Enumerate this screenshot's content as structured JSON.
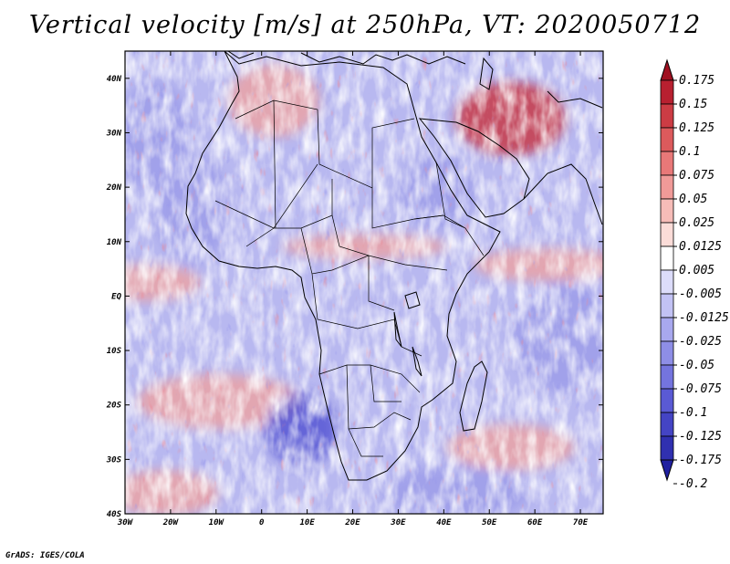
{
  "title": "Vertical velocity [m/s] at 250hPa, VT: 2020050712",
  "footer": "GrADS: IGES/COLA",
  "map": {
    "lon_ticks": [
      "30W",
      "20W",
      "10W",
      "0",
      "10E",
      "20E",
      "30E",
      "40E",
      "50E",
      "60E",
      "70E"
    ],
    "lat_ticks": [
      "40N",
      "30N",
      "20N",
      "10N",
      "EQ",
      "10S",
      "20S",
      "30S",
      "40S"
    ],
    "lon_range": [
      -30,
      75
    ],
    "lat_range": [
      -40,
      45
    ]
  },
  "colorbar": {
    "labels": [
      "0.175",
      "0.15",
      "0.125",
      "0.1",
      "0.075",
      "0.05",
      "0.025",
      "0.0125",
      "0.005",
      "-0.005",
      "-0.0125",
      "-0.025",
      "-0.05",
      "-0.075",
      "-0.1",
      "-0.125",
      "-0.175",
      "-0.2"
    ],
    "colors": [
      "#a01020",
      "#b82030",
      "#cc3c44",
      "#dc5a5c",
      "#e87878",
      "#f09a98",
      "#f6bcb8",
      "#fbdcd8",
      "#ffffff",
      "#dcdcfa",
      "#c2c2f4",
      "#a8a8ee",
      "#8e8ee6",
      "#7474de",
      "#5a5ad4",
      "#4444c4",
      "#3030b0",
      "#2020a0"
    ]
  },
  "field_colors": {
    "positive": "#f0a09c",
    "strong_positive": "#c82830",
    "negative": "#9a9ae8",
    "strong_negative": "#4a4ad0",
    "neutral": "#ffffff",
    "background": "#b8b8f0"
  }
}
